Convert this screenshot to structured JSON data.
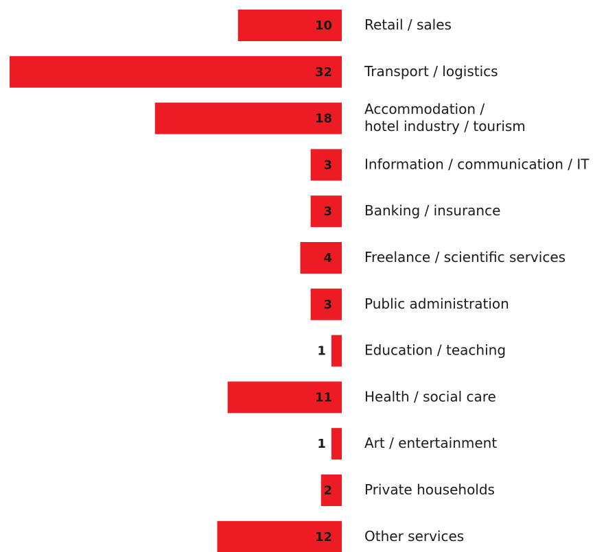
{
  "chart_data": {
    "type": "bar",
    "orientation": "horizontal",
    "color": "#ed1c24",
    "categories": [
      "Retail / sales",
      "Transport / logistics",
      "Accommodation /\nhotel industry / tourism",
      "Information / communication / IT",
      "Banking / insurance",
      "Freelance / scientific services",
      "Public administration",
      "Education / teaching",
      "Health / social care",
      "Art / entertainment",
      "Private households",
      "Other services"
    ],
    "values": [
      10,
      32,
      18,
      3,
      3,
      4,
      3,
      1,
      11,
      1,
      2,
      12
    ]
  }
}
